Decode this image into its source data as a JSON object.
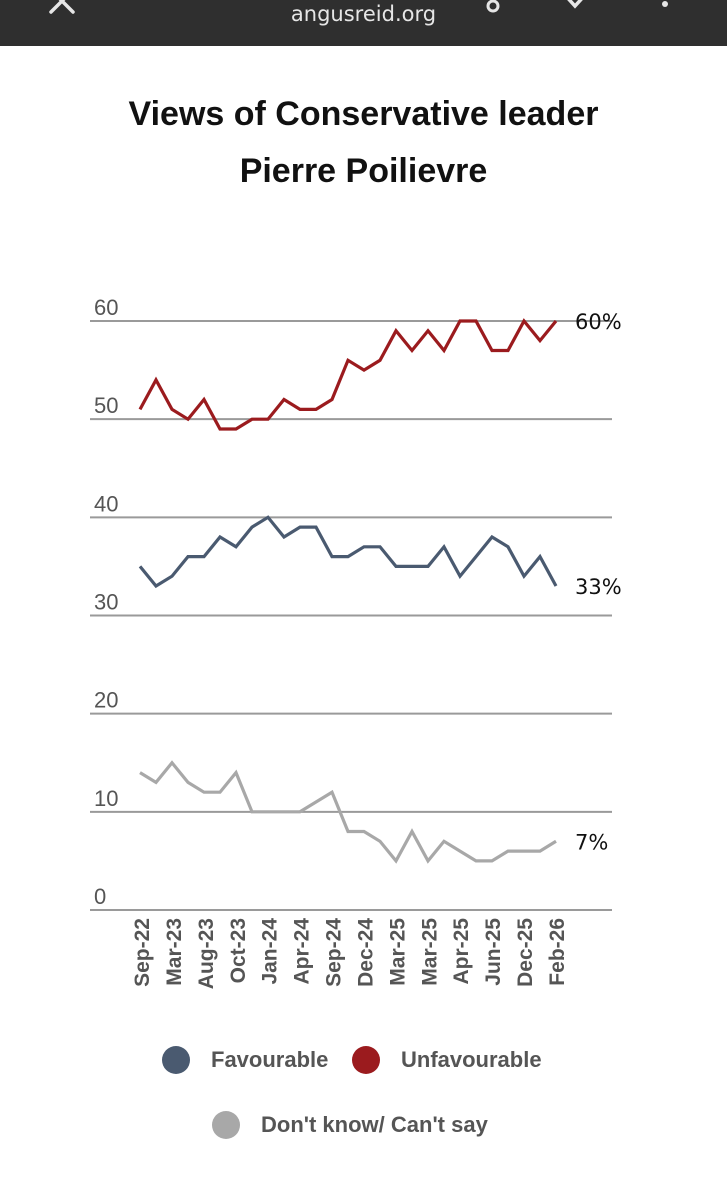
{
  "browser": {
    "url": "angusreid.org"
  },
  "chart_data": {
    "type": "line",
    "title": "Views of Conservative leader Pierre Poilievre",
    "title_lines": [
      "Views of Conservative leader",
      "Pierre Poilievre"
    ],
    "ylim": [
      0,
      60
    ],
    "yticks": [
      "0",
      "10",
      "20",
      "30",
      "40",
      "50",
      "60"
    ],
    "xtick_labels": [
      "Sep-22",
      "Mar-23",
      "Aug-23",
      "Oct-23",
      "Jan-24",
      "Apr-24",
      "Sep-24",
      "Dec-24",
      "Mar-25",
      "Mar-25",
      "Apr-25",
      "Jun-25",
      "Dec-25",
      "Feb-26"
    ],
    "series": [
      {
        "name": "Unfavourable",
        "color": "#9b1b1e",
        "end_label": "60%",
        "values": [
          51,
          54,
          51,
          50,
          52,
          49,
          49,
          50,
          50,
          52,
          51,
          51,
          52,
          56,
          55,
          56,
          59,
          57,
          59,
          57,
          60,
          60,
          57,
          57,
          60,
          58,
          60
        ]
      },
      {
        "name": "Favourable",
        "color": "#4a5a70",
        "end_label": "33%",
        "values": [
          35,
          33,
          34,
          36,
          36,
          38,
          37,
          39,
          40,
          38,
          39,
          39,
          36,
          36,
          37,
          37,
          35,
          35,
          35,
          37,
          34,
          36,
          38,
          37,
          34,
          36,
          33
        ]
      },
      {
        "name": "Don't know/ Can't say",
        "color": "#a8a8a8",
        "end_label": "7%",
        "values": [
          14,
          13,
          15,
          13,
          12,
          12,
          14,
          10,
          10,
          10,
          10,
          11,
          12,
          8,
          8,
          7,
          5,
          8,
          5,
          7,
          6,
          5,
          5,
          6,
          6,
          6,
          7
        ]
      }
    ],
    "legend": [
      "Favourable",
      "Unfavourable",
      "Don't know/ Can't say"
    ]
  }
}
